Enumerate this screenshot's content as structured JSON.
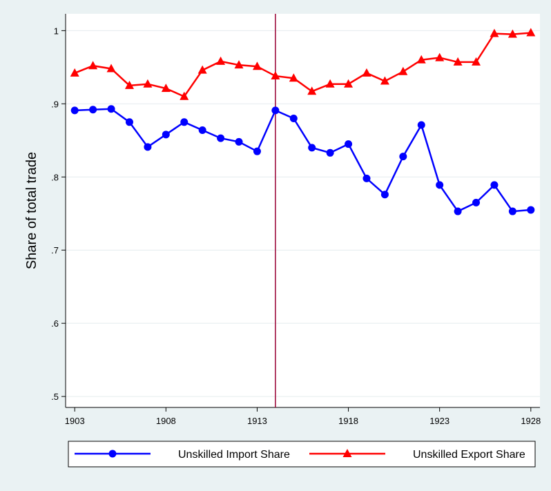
{
  "chart_data": {
    "type": "line",
    "y_label": "Share of total trade",
    "x": [
      1903,
      1904,
      1905,
      1906,
      1907,
      1908,
      1909,
      1910,
      1911,
      1912,
      1913,
      1914,
      1915,
      1916,
      1917,
      1918,
      1919,
      1920,
      1921,
      1922,
      1923,
      1924,
      1925,
      1926,
      1927,
      1928
    ],
    "series": [
      {
        "name": "Unskilled Import Share",
        "color": "#0000ff",
        "marker": "circle",
        "values": [
          0.891,
          0.892,
          0.893,
          0.875,
          0.841,
          0.858,
          0.875,
          0.864,
          0.853,
          0.848,
          0.835,
          0.891,
          0.88,
          0.84,
          0.833,
          0.845,
          0.798,
          0.776,
          0.828,
          0.871,
          0.789,
          0.753,
          0.765,
          0.789,
          0.753,
          0.755
        ]
      },
      {
        "name": "Unskilled Export Share",
        "color": "#ff0000",
        "marker": "triangle",
        "values": [
          0.942,
          0.952,
          0.948,
          0.925,
          0.927,
          0.921,
          0.91,
          0.946,
          0.958,
          0.953,
          0.951,
          0.938,
          0.935,
          0.917,
          0.927,
          0.927,
          0.942,
          0.931,
          0.944,
          0.96,
          0.963,
          0.957,
          0.957,
          0.996,
          0.995,
          0.997
        ]
      }
    ],
    "xline": 1914,
    "xline_color": "#990033",
    "xlim": [
      1902.5,
      1928.5
    ],
    "xticks": [
      1903,
      1908,
      1913,
      1918,
      1923,
      1928
    ],
    "ylim": [
      0.485,
      1.023
    ],
    "yticks": [
      {
        "value": 0.5,
        "label": ".5"
      },
      {
        "value": 0.6,
        "label": ".6"
      },
      {
        "value": 0.7,
        "label": ".7"
      },
      {
        "value": 0.8,
        "label": ".8"
      },
      {
        "value": 0.9,
        "label": ".9"
      },
      1
    ],
    "grid": true,
    "legend": "bottom"
  }
}
